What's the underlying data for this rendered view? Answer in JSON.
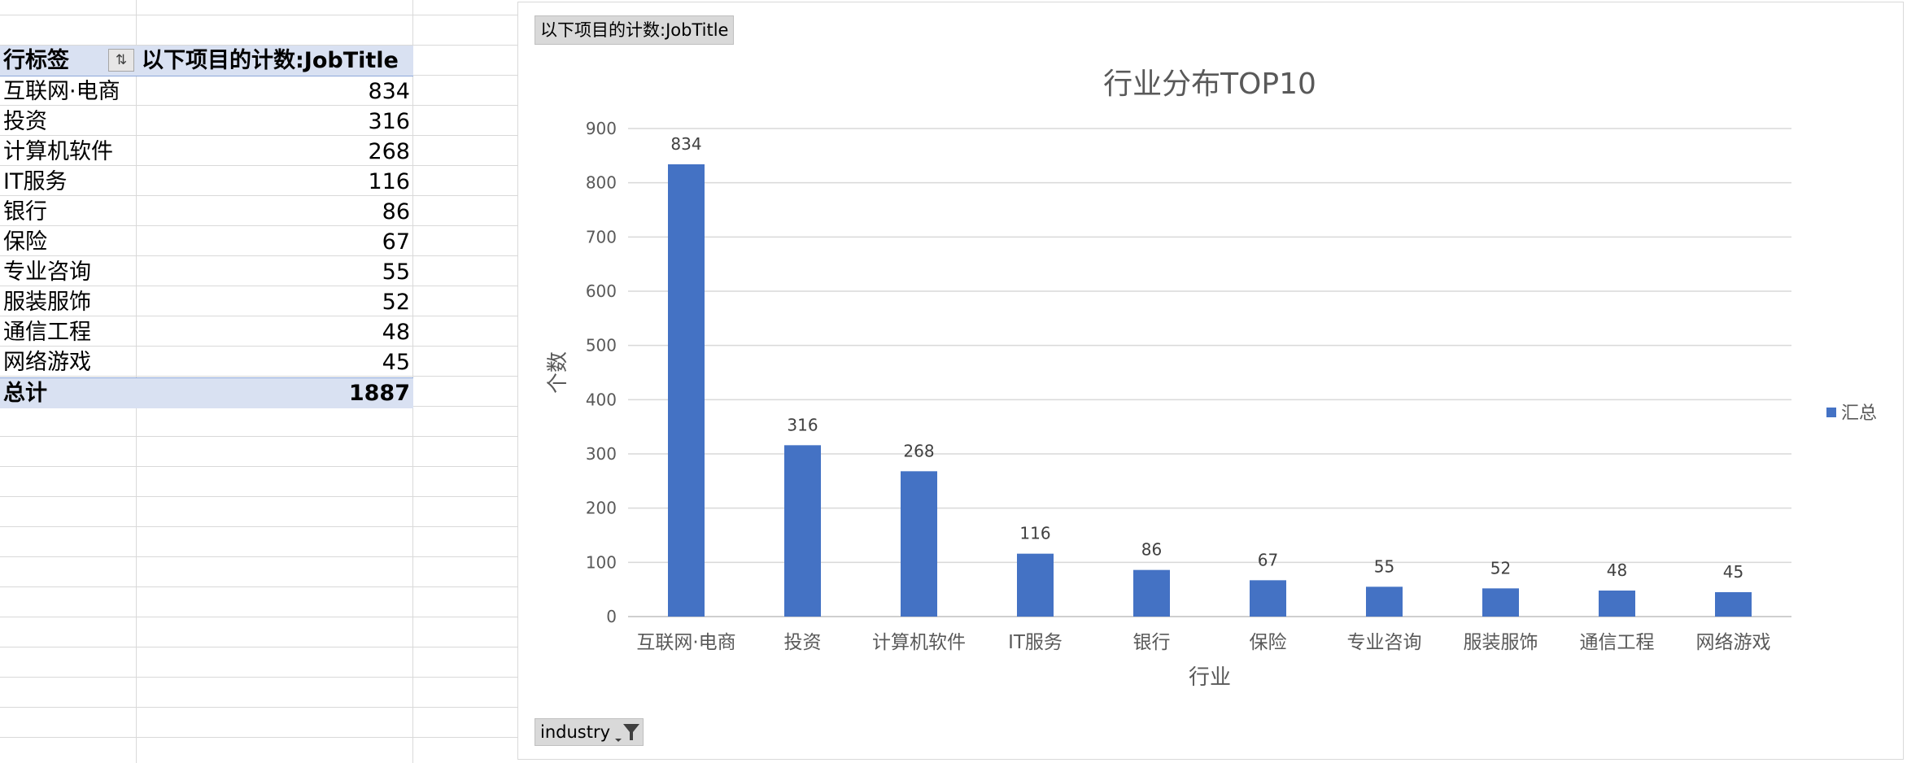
{
  "pivot": {
    "header_row_label": "行标签",
    "header_value_label": "以下项目的计数:JobTitle",
    "rows": [
      {
        "label": "互联网·电商",
        "value": "834"
      },
      {
        "label": "投资",
        "value": "316"
      },
      {
        "label": "计算机软件",
        "value": "268"
      },
      {
        "label": "IT服务",
        "value": "116"
      },
      {
        "label": "银行",
        "value": "86"
      },
      {
        "label": "保险",
        "value": "67"
      },
      {
        "label": "专业咨询",
        "value": "55"
      },
      {
        "label": "服装服饰",
        "value": "52"
      },
      {
        "label": "通信工程",
        "value": "48"
      },
      {
        "label": "网络游戏",
        "value": "45"
      }
    ],
    "total_label": "总计",
    "total_value": "1887"
  },
  "chart_buttons": {
    "value_field": "以下项目的计数:JobTitle",
    "axis_field": "industry"
  },
  "colors": {
    "bar": "#4472c4",
    "pivot_header": "#d9e1f2",
    "gridline": "#d9d9d9"
  },
  "icons": {
    "filter": "filter-icon",
    "sort_filter": "sort-filter-icon"
  },
  "chart_data": {
    "type": "bar",
    "title": "行业分布TOP10",
    "xlabel": "行业",
    "ylabel": "个数",
    "categories": [
      "互联网·电商",
      "投资",
      "计算机软件",
      "IT服务",
      "银行",
      "保险",
      "专业咨询",
      "服装服饰",
      "通信工程",
      "网络游戏"
    ],
    "series": [
      {
        "name": "汇总",
        "values": [
          834,
          316,
          268,
          116,
          86,
          67,
          55,
          52,
          48,
          45
        ]
      }
    ],
    "ylim": [
      0,
      900
    ],
    "yticks": [
      0,
      100,
      200,
      300,
      400,
      500,
      600,
      700,
      800,
      900
    ],
    "grid": true,
    "legend": "right",
    "data_labels": true
  }
}
